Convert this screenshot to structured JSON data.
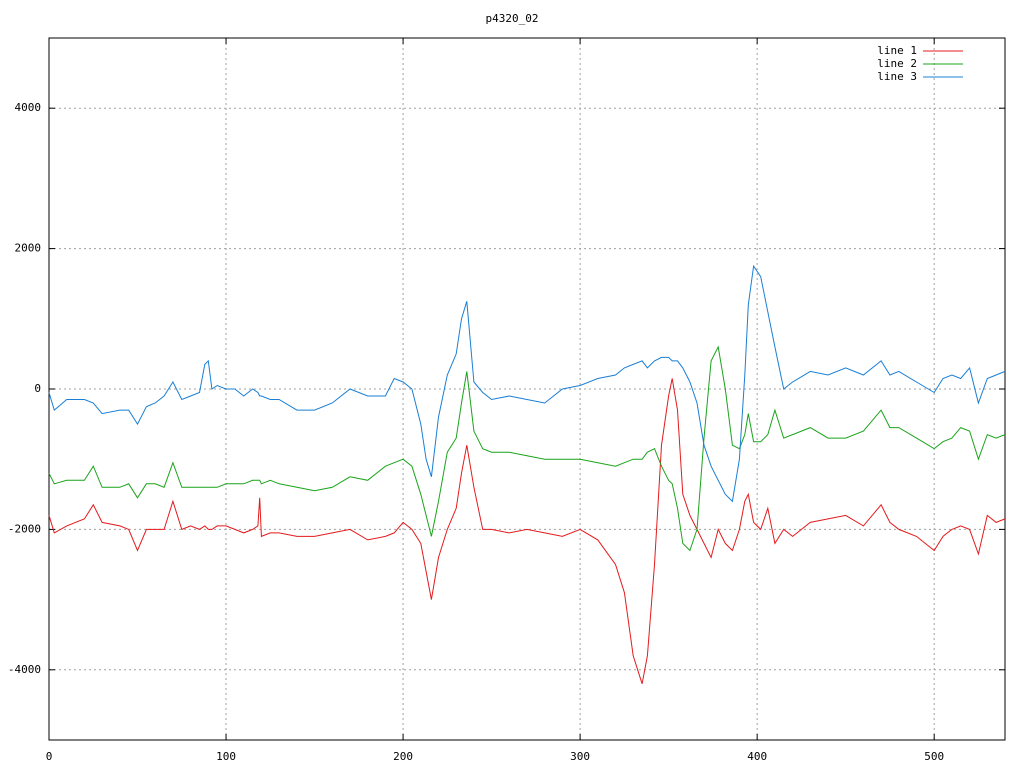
{
  "chart_data": {
    "type": "line",
    "title": "p4320_02",
    "x": [
      0,
      3,
      10,
      20,
      25,
      30,
      40,
      45,
      50,
      55,
      60,
      65,
      70,
      75,
      80,
      85,
      88,
      90,
      92,
      95,
      100,
      105,
      110,
      115,
      118,
      119,
      120,
      125,
      130,
      140,
      150,
      160,
      170,
      180,
      190,
      195,
      200,
      205,
      210,
      213,
      216,
      220,
      225,
      230,
      233,
      236,
      240,
      245,
      250,
      260,
      270,
      280,
      290,
      300,
      310,
      320,
      325,
      330,
      335,
      338,
      342,
      346,
      350,
      352,
      355,
      358,
      362,
      366,
      370,
      374,
      378,
      382,
      386,
      390,
      393,
      395,
      398,
      402,
      406,
      410,
      415,
      420,
      430,
      440,
      450,
      460,
      470,
      475,
      480,
      490,
      500,
      505,
      510,
      515,
      520,
      525,
      530,
      535,
      540
    ],
    "series": [
      {
        "name": "line 1",
        "color": "#e41a1c",
        "values": [
          -1800,
          -2050,
          -1950,
          -1850,
          -1650,
          -1900,
          -1950,
          -2000,
          -2300,
          -2000,
          -2000,
          -2000,
          -1600,
          -2000,
          -1950,
          -2000,
          -1950,
          -2000,
          -2000,
          -1950,
          -1950,
          -2000,
          -2050,
          -2000,
          -1950,
          -1550,
          -2100,
          -2050,
          -2050,
          -2100,
          -2100,
          -2050,
          -2000,
          -2150,
          -2100,
          -2050,
          -1900,
          -2000,
          -2200,
          -2600,
          -3000,
          -2400,
          -2000,
          -1700,
          -1200,
          -800,
          -1400,
          -2000,
          -2000,
          -2050,
          -2000,
          -2050,
          -2100,
          -2000,
          -2150,
          -2500,
          -2900,
          -3800,
          -4200,
          -3800,
          -2500,
          -800,
          -100,
          150,
          -300,
          -1500,
          -1800,
          -2000,
          -2200,
          -2400,
          -2000,
          -2200,
          -2300,
          -2000,
          -1600,
          -1500,
          -1900,
          -2000,
          -1700,
          -2200,
          -2000,
          -2100,
          -1900,
          -1850,
          -1800,
          -1950,
          -1650,
          -1900,
          -2000,
          -2100,
          -2300,
          -2100,
          -2000,
          -1950,
          -2000,
          -2350,
          -1800,
          -1900,
          -1850
        ]
      },
      {
        "name": "line 2",
        "color": "#1aa41a",
        "values": [
          -1200,
          -1350,
          -1300,
          -1300,
          -1100,
          -1400,
          -1400,
          -1350,
          -1550,
          -1350,
          -1350,
          -1400,
          -1050,
          -1400,
          -1400,
          -1400,
          -1400,
          -1400,
          -1400,
          -1400,
          -1350,
          -1350,
          -1350,
          -1300,
          -1300,
          -1300,
          -1350,
          -1300,
          -1350,
          -1400,
          -1450,
          -1400,
          -1250,
          -1300,
          -1100,
          -1050,
          -1000,
          -1100,
          -1500,
          -1800,
          -2100,
          -1600,
          -900,
          -700,
          -200,
          250,
          -600,
          -850,
          -900,
          -900,
          -950,
          -1000,
          -1000,
          -1000,
          -1050,
          -1100,
          -1050,
          -1000,
          -1000,
          -900,
          -850,
          -1100,
          -1300,
          -1350,
          -1700,
          -2200,
          -2300,
          -2000,
          -700,
          400,
          600,
          0,
          -800,
          -850,
          -650,
          -350,
          -750,
          -750,
          -650,
          -300,
          -700,
          -650,
          -550,
          -700,
          -700,
          -600,
          -300,
          -550,
          -550,
          -700,
          -850,
          -750,
          -700,
          -550,
          -600,
          -1000,
          -650,
          -700,
          -650
        ]
      },
      {
        "name": "line 3",
        "color": "#1a7fd4",
        "values": [
          -50,
          -300,
          -150,
          -150,
          -200,
          -350,
          -300,
          -300,
          -500,
          -250,
          -200,
          -100,
          100,
          -150,
          -100,
          -50,
          350,
          400,
          0,
          50,
          0,
          0,
          -100,
          0,
          -50,
          -100,
          -100,
          -150,
          -150,
          -300,
          -300,
          -200,
          0,
          -100,
          -100,
          150,
          100,
          0,
          -500,
          -1000,
          -1250,
          -400,
          200,
          500,
          1000,
          1250,
          100,
          -50,
          -150,
          -100,
          -150,
          -200,
          0,
          50,
          150,
          200,
          300,
          350,
          400,
          300,
          400,
          450,
          450,
          400,
          400,
          300,
          100,
          -200,
          -800,
          -1100,
          -1300,
          -1500,
          -1600,
          -1000,
          200,
          1200,
          1750,
          1600,
          1100,
          600,
          0,
          100,
          250,
          200,
          300,
          200,
          400,
          200,
          250,
          100,
          -50,
          150,
          200,
          150,
          300,
          -200,
          150,
          200,
          250
        ]
      }
    ],
    "xlim": [
      0,
      540
    ],
    "ylim": [
      -5000,
      5000
    ],
    "xticks": [
      0,
      100,
      200,
      300,
      400,
      500
    ],
    "yticks": [
      -4000,
      -2000,
      0,
      2000,
      4000
    ],
    "grid": true,
    "legend": "top-right"
  }
}
